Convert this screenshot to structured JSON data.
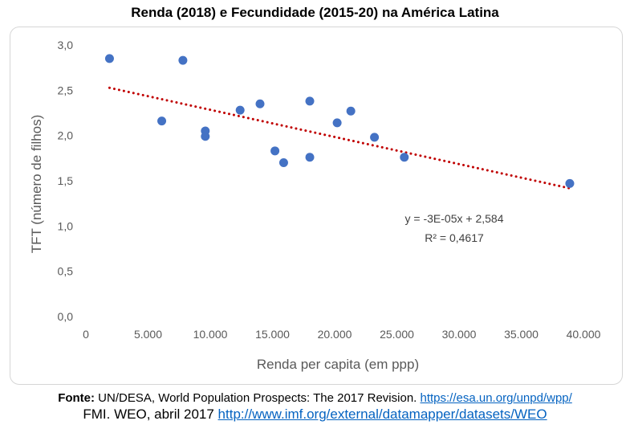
{
  "chart_data": {
    "type": "scatter",
    "title": "Renda (2018) e Fecundidade (2015-20) na América Latina",
    "xlabel": "Renda per capita (em ppp)",
    "ylabel": "TFT (número de filhos)",
    "xlim": [
      0,
      40000
    ],
    "ylim": [
      0,
      3.0
    ],
    "x_ticks": [
      0,
      5000,
      10000,
      15000,
      20000,
      25000,
      30000,
      35000,
      40000
    ],
    "x_tick_labels": [
      "0",
      "5.000",
      "10.000",
      "15.000",
      "20.000",
      "25.000",
      "30.000",
      "35.000",
      "40.000"
    ],
    "y_ticks": [
      0,
      0.5,
      1.0,
      1.5,
      2.0,
      2.5,
      3.0
    ],
    "y_tick_labels": [
      "0,0",
      "0,5",
      "1,0",
      "1,5",
      "2,0",
      "2,5",
      "3,0"
    ],
    "grid": false,
    "legend": "none",
    "series": [
      {
        "color": "#4472c4",
        "points": [
          {
            "x": 1900,
            "y": 2.85
          },
          {
            "x": 6100,
            "y": 2.16
          },
          {
            "x": 7800,
            "y": 2.83
          },
          {
            "x": 9600,
            "y": 2.05
          },
          {
            "x": 9600,
            "y": 1.99
          },
          {
            "x": 12400,
            "y": 2.28
          },
          {
            "x": 14000,
            "y": 2.35
          },
          {
            "x": 15200,
            "y": 1.83
          },
          {
            "x": 15900,
            "y": 1.7
          },
          {
            "x": 18000,
            "y": 2.38
          },
          {
            "x": 18000,
            "y": 1.76
          },
          {
            "x": 20200,
            "y": 2.14
          },
          {
            "x": 21300,
            "y": 2.27
          },
          {
            "x": 23200,
            "y": 1.98
          },
          {
            "x": 25600,
            "y": 1.76
          },
          {
            "x": 38900,
            "y": 1.47
          }
        ]
      }
    ],
    "trendline": {
      "type": "linear",
      "slope": -3e-05,
      "intercept": 2.584,
      "x_range": [
        1900,
        38900
      ],
      "color": "#c00000",
      "style": "dotted",
      "equation_label": "y = -3E-05x + 2,584",
      "r2_label": "R² = 0,4617"
    }
  },
  "source": {
    "prefix": "Fonte:",
    "line1_text": " UN/DESA, World Population Prospects: The 2017 Revision. ",
    "line1_link": "https://esa.un.org/unpd/wpp/",
    "line2_text": "FMI. WEO, abril 2017 ",
    "line2_link": "http://www.imf.org/external/datamapper/datasets/WEO"
  }
}
